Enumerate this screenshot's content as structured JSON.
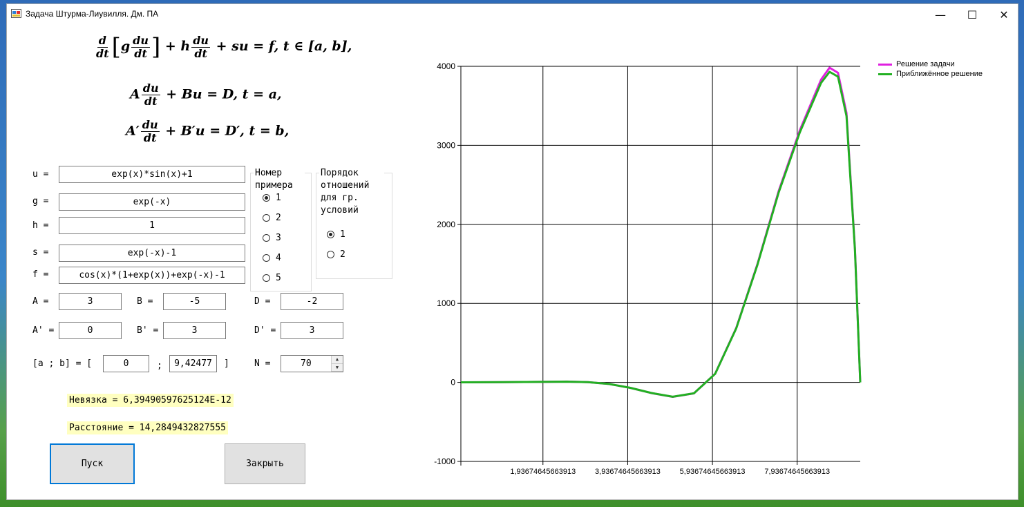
{
  "window": {
    "title": "Задача Штурма-Лиувилля. Дм. ПА",
    "controls": {
      "minimize": "—",
      "maximize": "☐",
      "close": "✕"
    }
  },
  "formulas": {
    "equation": "d/dt [g du/dt] + h du/dt + su = f, t ∈ [a, b],",
    "left_boundary": "A du/dt + Bu = D, t = a,",
    "right_boundary": "A' du/dt + B'u = D', t = b,"
  },
  "fields": {
    "u": {
      "label": "u =",
      "value": "exp(x)*sin(x)+1"
    },
    "g": {
      "label": "g =",
      "value": "exp(-x)"
    },
    "h": {
      "label": "h =",
      "value": "1"
    },
    "s": {
      "label": "s =",
      "value": "exp(-x)-1"
    },
    "f": {
      "label": "f =",
      "value": "cos(x)*(1+exp(x))+exp(-x)-1"
    },
    "A": {
      "label": "A =",
      "value": "3"
    },
    "B": {
      "label": "B =",
      "value": "-5"
    },
    "D": {
      "label": "D =",
      "value": "-2"
    },
    "A1": {
      "label": "A' =",
      "value": "0"
    },
    "B1": {
      "label": "B' =",
      "value": "3"
    },
    "D1": {
      "label": "D' =",
      "value": "3"
    },
    "interval": {
      "label": "[a ; b] = [",
      "sep": ";",
      "close": "]",
      "a": "0",
      "b": "9,42477"
    },
    "N": {
      "label": "N =",
      "value": "70"
    }
  },
  "example_group": {
    "title": "Номер\nпримера",
    "options": [
      "1",
      "2",
      "3",
      "4",
      "5"
    ],
    "selected": "1"
  },
  "order_group": {
    "title": "Порядок\nотношений\nдля гр.\nусловий",
    "options": [
      "1",
      "2"
    ],
    "selected": "1"
  },
  "results": {
    "residual": "Невязка = 6,39490597625124E-12",
    "distance": "Расстояние = 14,2849432827555"
  },
  "buttons": {
    "run": "Пуск",
    "close": "Закрыть"
  },
  "chart_data": {
    "type": "line",
    "title": "",
    "xlabel": "",
    "ylabel": "",
    "xlim": [
      0,
      9.42477
    ],
    "ylim": [
      -1000,
      4000
    ],
    "y_ticks": [
      -1000,
      0,
      1000,
      2000,
      3000,
      4000
    ],
    "y_tick_labels": [
      "-1000",
      "0",
      "1000",
      "2000",
      "3000",
      "4000"
    ],
    "x_ticks": [
      1.93674645663913,
      3.93674645663913,
      5.93674645663913,
      7.93674645663913
    ],
    "x_tick_labels": [
      "1,93674645663913",
      "3,93674645663913",
      "5,93674645663913",
      "7,93674645663913"
    ],
    "grid": true,
    "legend_position": "top-right",
    "series": [
      {
        "name": "Решение задачи",
        "color": "#e020e0",
        "x": [
          0,
          0.5,
          1,
          1.5,
          2,
          2.5,
          3,
          3.5,
          4,
          4.5,
          5,
          5.5,
          6,
          6.5,
          7,
          7.5,
          8,
          8.5,
          8.7,
          8.9,
          9.1,
          9.3,
          9.42477
        ],
        "y": [
          1,
          1.8,
          3.3,
          5.5,
          7.7,
          10.1,
          3.8,
          -20.1,
          -69.4,
          -135.6,
          -183.1,
          -138.8,
          109.6,
          690.4,
          1500.2,
          2423.4,
          3191.7,
          3831.2,
          3982.1,
          3918.0,
          3409.5,
          1700.0,
          1
        ]
      },
      {
        "name": "Приближённое решение",
        "color": "#22b022",
        "x": [
          0,
          0.5,
          1,
          1.5,
          2,
          2.5,
          3,
          3.5,
          4,
          4.5,
          5,
          5.5,
          6,
          6.5,
          7,
          7.5,
          8,
          8.5,
          8.7,
          8.9,
          9.1,
          9.3,
          9.42477
        ],
        "y": [
          1,
          1.8,
          3.3,
          5.5,
          7.7,
          10.0,
          3.7,
          -20.0,
          -69.0,
          -135.0,
          -182.0,
          -138.0,
          108.0,
          685.0,
          1490.0,
          2405.0,
          3165.0,
          3790.0,
          3930.0,
          3870.0,
          3370.0,
          1680.0,
          1
        ]
      }
    ]
  }
}
